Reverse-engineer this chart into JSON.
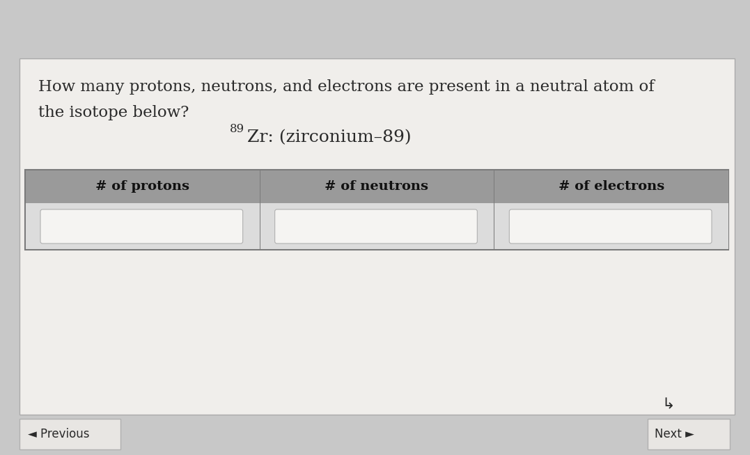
{
  "title_line1": "How many protons, neutrons, and electrons are present in a neutral atom of",
  "title_line2": "the isotope below?",
  "isotope_superscript": "89",
  "isotope_symbol": "Zr: (zirconium–89)",
  "col_headers": [
    "# of protons",
    "# of neutrons",
    "# of electrons"
  ],
  "page_bg": "#c8c8c8",
  "card_bg": "#f0eeeb",
  "header_bg": "#9a9a9a",
  "cell_bg": "#dcdcdc",
  "input_box_bg": "#f5f4f2",
  "table_border_color": "#7a7a7a",
  "cell_divider_color": "#7a7a7a",
  "text_color": "#2a2a2a",
  "header_text_color": "#111111",
  "nav_box_bg": "#e8e6e3",
  "nav_prev": "Previous",
  "nav_next": "Next",
  "title_fontsize": 16.5,
  "isotope_fontsize": 18,
  "header_fontsize": 14,
  "nav_fontsize": 12
}
